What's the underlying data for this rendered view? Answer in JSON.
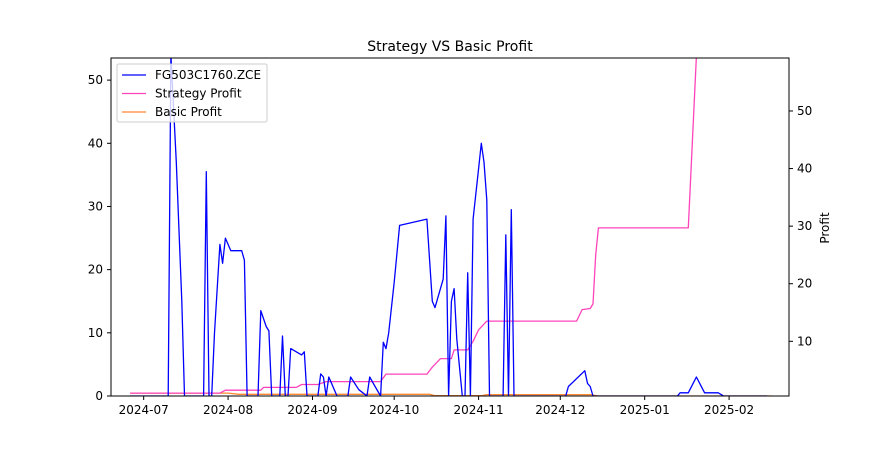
{
  "chart_data": {
    "type": "line",
    "title": "Strategy VS Basic Profit",
    "xlabel": "",
    "ylabel_left": "",
    "ylabel_right": "Profit",
    "x_ticks": [
      "2024-07",
      "2024-08",
      "2024-09",
      "2024-10",
      "2024-11",
      "2024-12",
      "2025-01",
      "2025-02"
    ],
    "x_range": [
      "2024-06-19",
      "2025-02-23"
    ],
    "y_left": {
      "lim": [
        0,
        53.5
      ],
      "ticks": [
        0,
        10,
        20,
        30,
        40,
        50
      ]
    },
    "y_right": {
      "lim": [
        0.5,
        59.2
      ],
      "ticks": [
        10,
        20,
        30,
        40,
        50
      ]
    },
    "grid": false,
    "legend": {
      "position": "top-left",
      "entries": [
        "FG503C1760.ZCE",
        "Strategy Profit",
        "Basic Profit"
      ]
    },
    "series": [
      {
        "name": "FG503C1760.ZCE",
        "axis": "left",
        "color": "#0000ff",
        "points": [
          [
            "2024-06-26",
            0
          ],
          [
            "2024-07-10",
            0
          ],
          [
            "2024-07-11",
            54
          ],
          [
            "2024-07-13",
            37
          ],
          [
            "2024-07-15",
            15
          ],
          [
            "2024-07-16",
            0
          ],
          [
            "2024-07-23",
            0
          ],
          [
            "2024-07-24",
            35.5
          ],
          [
            "2024-07-25",
            0
          ],
          [
            "2024-07-26",
            0
          ],
          [
            "2024-07-27",
            10
          ],
          [
            "2024-07-29",
            24
          ],
          [
            "2024-07-30",
            21
          ],
          [
            "2024-07-31",
            25
          ],
          [
            "2024-08-02",
            23
          ],
          [
            "2024-08-06",
            23
          ],
          [
            "2024-08-07",
            21.5
          ],
          [
            "2024-08-08",
            0
          ],
          [
            "2024-08-12",
            0
          ],
          [
            "2024-08-13",
            13.5
          ],
          [
            "2024-08-15",
            11
          ],
          [
            "2024-08-16",
            10.3
          ],
          [
            "2024-08-17",
            0
          ],
          [
            "2024-08-20",
            0
          ],
          [
            "2024-08-21",
            9.5
          ],
          [
            "2024-08-22",
            0
          ],
          [
            "2024-08-23",
            0
          ],
          [
            "2024-08-24",
            7.5
          ],
          [
            "2024-08-28",
            6.5
          ],
          [
            "2024-08-29",
            7
          ],
          [
            "2024-08-30",
            0
          ],
          [
            "2024-09-03",
            0
          ],
          [
            "2024-09-04",
            3.5
          ],
          [
            "2024-09-05",
            3
          ],
          [
            "2024-09-06",
            0
          ],
          [
            "2024-09-07",
            3
          ],
          [
            "2024-09-10",
            0
          ],
          [
            "2024-09-14",
            0
          ],
          [
            "2024-09-15",
            3
          ],
          [
            "2024-09-18",
            1
          ],
          [
            "2024-09-21",
            0
          ],
          [
            "2024-09-22",
            3
          ],
          [
            "2024-09-24",
            1.5
          ],
          [
            "2024-09-26",
            0
          ],
          [
            "2024-09-27",
            8.5
          ],
          [
            "2024-09-28",
            7.5
          ],
          [
            "2024-09-29",
            10
          ],
          [
            "2024-10-01",
            18
          ],
          [
            "2024-10-03",
            27
          ],
          [
            "2024-10-13",
            28
          ],
          [
            "2024-10-15",
            15
          ],
          [
            "2024-10-16",
            14
          ],
          [
            "2024-10-19",
            18.5
          ],
          [
            "2024-10-20",
            28.5
          ],
          [
            "2024-10-21",
            0
          ],
          [
            "2024-10-22",
            15
          ],
          [
            "2024-10-23",
            17
          ],
          [
            "2024-10-24",
            9
          ],
          [
            "2024-10-26",
            0
          ],
          [
            "2024-10-27",
            0
          ],
          [
            "2024-10-28",
            19.5
          ],
          [
            "2024-10-29",
            0
          ],
          [
            "2024-10-30",
            28
          ],
          [
            "2024-11-01",
            36
          ],
          [
            "2024-11-02",
            40
          ],
          [
            "2024-11-03",
            37
          ],
          [
            "2024-11-04",
            31
          ],
          [
            "2024-11-05",
            0
          ],
          [
            "2024-11-10",
            0
          ],
          [
            "2024-11-11",
            25.5
          ],
          [
            "2024-11-12",
            0
          ],
          [
            "2024-11-13",
            29.5
          ],
          [
            "2024-11-14",
            0
          ],
          [
            "2024-12-03",
            0
          ],
          [
            "2024-12-04",
            1.5
          ],
          [
            "2024-12-10",
            4
          ],
          [
            "2024-12-11",
            2
          ],
          [
            "2024-12-12",
            1.5
          ],
          [
            "2024-12-13",
            0
          ],
          [
            "2025-01-13",
            0
          ],
          [
            "2025-01-14",
            0.5
          ],
          [
            "2025-01-17",
            0.5
          ],
          [
            "2025-01-20",
            3
          ],
          [
            "2025-01-23",
            0.5
          ],
          [
            "2025-01-28",
            0.5
          ],
          [
            "2025-01-30",
            0
          ],
          [
            "2025-02-15",
            0
          ]
        ]
      },
      {
        "name": "Strategy Profit",
        "axis": "right",
        "color": "#ff44bb",
        "points": [
          [
            "2024-06-26",
            1.0
          ],
          [
            "2024-07-29",
            1.0
          ],
          [
            "2024-07-31",
            1.5
          ],
          [
            "2024-08-13",
            1.5
          ],
          [
            "2024-08-14",
            2.0
          ],
          [
            "2024-08-26",
            2.0
          ],
          [
            "2024-08-28",
            2.5
          ],
          [
            "2024-09-03",
            2.5
          ],
          [
            "2024-09-06",
            3.0
          ],
          [
            "2024-09-26",
            3.0
          ],
          [
            "2024-09-28",
            4.3
          ],
          [
            "2024-10-13",
            4.3
          ],
          [
            "2024-10-15",
            5.5
          ],
          [
            "2024-10-16",
            6.0
          ],
          [
            "2024-10-18",
            7.0
          ],
          [
            "2024-10-22",
            7.0
          ],
          [
            "2024-10-23",
            8.5
          ],
          [
            "2024-10-28",
            8.5
          ],
          [
            "2024-10-30",
            10.0
          ],
          [
            "2024-11-01",
            12.0
          ],
          [
            "2024-11-04",
            13.5
          ],
          [
            "2024-12-07",
            13.5
          ],
          [
            "2024-12-09",
            15.5
          ],
          [
            "2024-12-12",
            15.7
          ],
          [
            "2024-12-13",
            16.5
          ],
          [
            "2024-12-14",
            25.0
          ],
          [
            "2024-12-15",
            29.7
          ],
          [
            "2025-01-17",
            29.7
          ],
          [
            "2025-01-20",
            59.5
          ]
        ]
      },
      {
        "name": "Basic Profit",
        "axis": "right",
        "color": "#ff8833",
        "points": [
          [
            "2024-06-26",
            1.0
          ],
          [
            "2024-08-01",
            1.0
          ],
          [
            "2024-08-05",
            0.8
          ],
          [
            "2024-10-14",
            0.8
          ],
          [
            "2024-10-16",
            0.55
          ],
          [
            "2024-11-02",
            0.55
          ],
          [
            "2024-11-04",
            0.75
          ],
          [
            "2024-12-12",
            0.75
          ],
          [
            "2024-12-15",
            0.5
          ],
          [
            "2025-02-17",
            0.5
          ]
        ]
      }
    ]
  }
}
